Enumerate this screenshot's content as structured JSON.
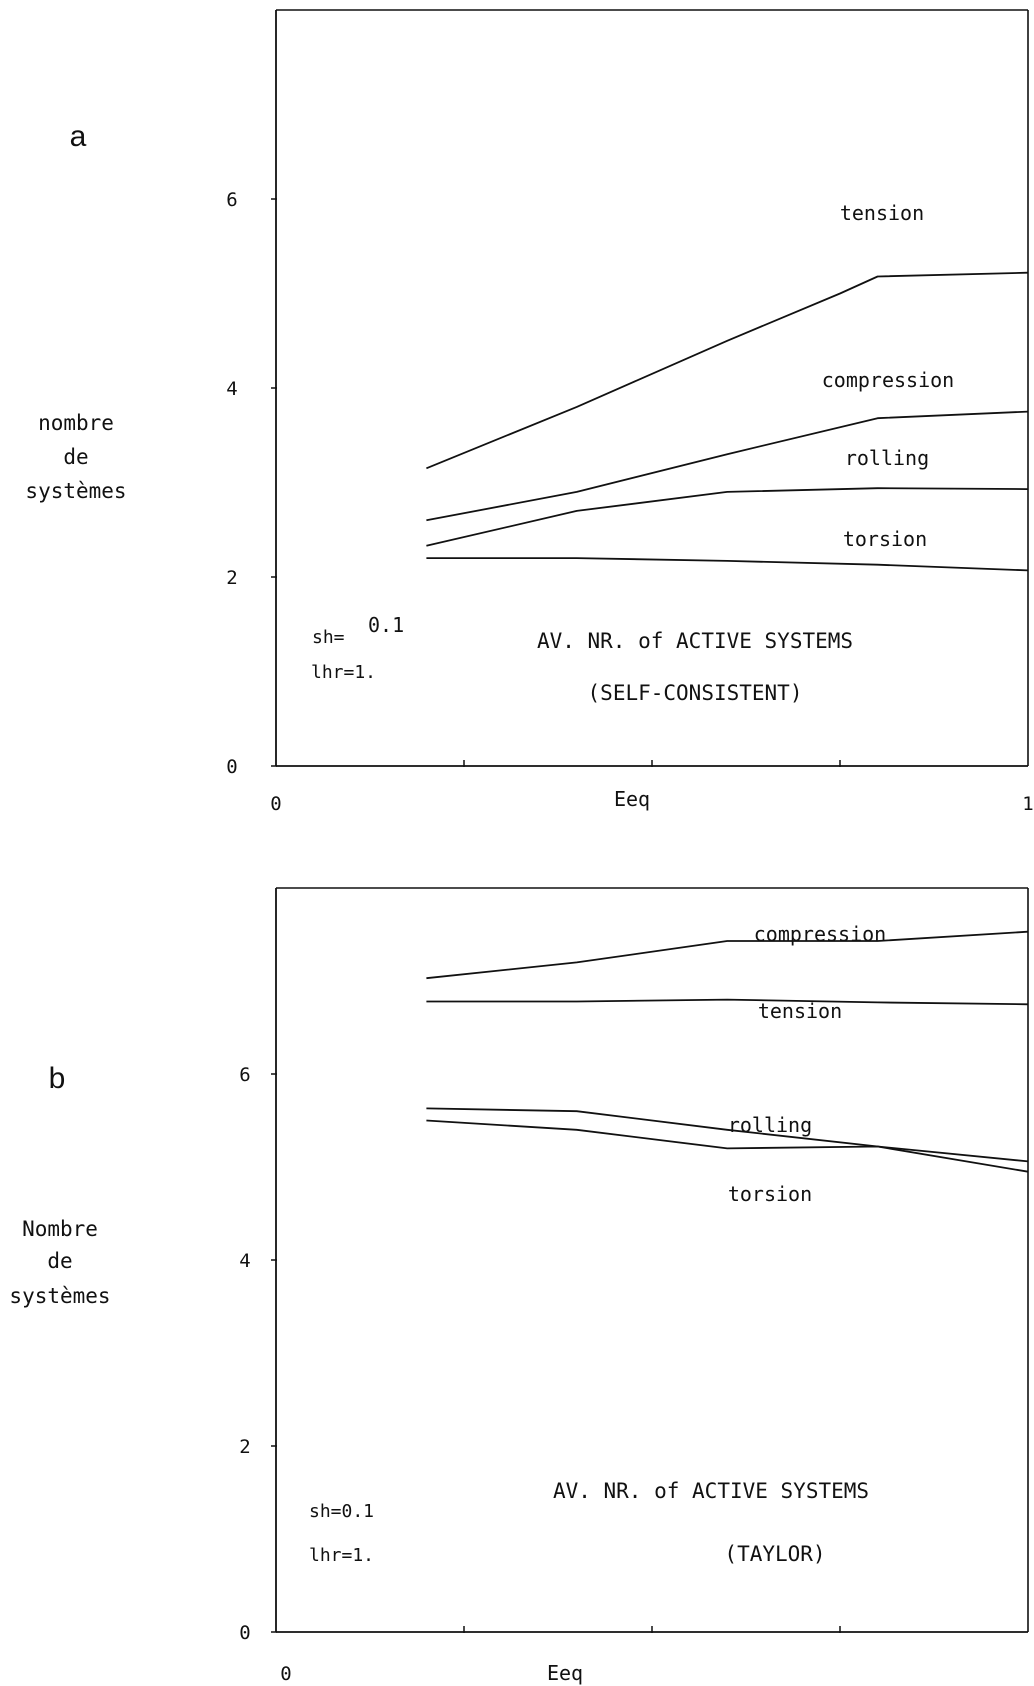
{
  "chart_data": [
    {
      "type": "line",
      "panel_label": "a",
      "ylabel": [
        "nombre",
        "de",
        "systèmes"
      ],
      "xlabel": "Eeq",
      "xlim": [
        0,
        1
      ],
      "ylim": [
        0,
        8
      ],
      "xticks": [
        {
          "value": 0,
          "label": "0"
        },
        {
          "value": 1,
          "label": "1"
        }
      ],
      "yticks": [
        {
          "value": 0,
          "label": "0"
        },
        {
          "value": 2,
          "label": "2"
        },
        {
          "value": 4,
          "label": "4"
        },
        {
          "value": 6,
          "label": "6"
        }
      ],
      "minor_xticks": [
        0.25,
        0.5,
        0.75
      ],
      "annotations": [
        "AV. NR. of ACTIVE SYSTEMS",
        "(SELF-CONSISTENT)"
      ],
      "params": [
        "sh=",
        "0.1",
        "lhr=1."
      ],
      "series": [
        {
          "name": "tension",
          "x": [
            0.2,
            0.4,
            0.6,
            0.75,
            0.8,
            1.0
          ],
          "y": [
            3.15,
            3.8,
            4.5,
            5.0,
            5.18,
            5.22
          ]
        },
        {
          "name": "compression",
          "x": [
            0.2,
            0.4,
            0.6,
            0.8,
            1.0
          ],
          "y": [
            2.6,
            2.9,
            3.3,
            3.68,
            3.75
          ]
        },
        {
          "name": "rolling",
          "x": [
            0.2,
            0.4,
            0.6,
            0.8,
            1.0
          ],
          "y": [
            2.33,
            2.7,
            2.9,
            2.94,
            2.93
          ]
        },
        {
          "name": "torsion",
          "x": [
            0.2,
            0.4,
            0.6,
            0.8,
            1.0
          ],
          "y": [
            2.2,
            2.2,
            2.17,
            2.13,
            2.07
          ]
        }
      ]
    },
    {
      "type": "line",
      "panel_label": "b",
      "ylabel": [
        "Nombre",
        "de",
        "systèmes"
      ],
      "xlabel": "Eeq",
      "xlim": [
        0,
        1
      ],
      "ylim": [
        0,
        8
      ],
      "xticks": [
        {
          "value": 0,
          "label": "0"
        },
        {
          "value": 1,
          "label": ""
        }
      ],
      "yticks": [
        {
          "value": 0,
          "label": "0"
        },
        {
          "value": 2,
          "label": "2"
        },
        {
          "value": 4,
          "label": "4"
        },
        {
          "value": 6,
          "label": "6"
        }
      ],
      "minor_xticks": [
        0.25,
        0.5,
        0.75
      ],
      "annotations": [
        "AV. NR. of ACTIVE SYSTEMS",
        "(TAYLOR)"
      ],
      "params": [
        "sh=0.1",
        "lhr=1."
      ],
      "series": [
        {
          "name": "compression",
          "x": [
            0.2,
            0.4,
            0.6,
            0.8,
            1.0
          ],
          "y": [
            7.03,
            7.2,
            7.43,
            7.43,
            7.53
          ]
        },
        {
          "name": "tension",
          "x": [
            0.2,
            0.4,
            0.6,
            0.8,
            1.0
          ],
          "y": [
            6.78,
            6.78,
            6.8,
            6.77,
            6.75
          ]
        },
        {
          "name": "rolling",
          "x": [
            0.2,
            0.4,
            0.6,
            0.8,
            1.0
          ],
          "y": [
            5.63,
            5.6,
            5.4,
            5.22,
            5.06
          ]
        },
        {
          "name": "torsion",
          "x": [
            0.2,
            0.4,
            0.6,
            0.8,
            1.0
          ],
          "y": [
            5.5,
            5.4,
            5.2,
            5.22,
            4.95
          ]
        }
      ]
    }
  ]
}
